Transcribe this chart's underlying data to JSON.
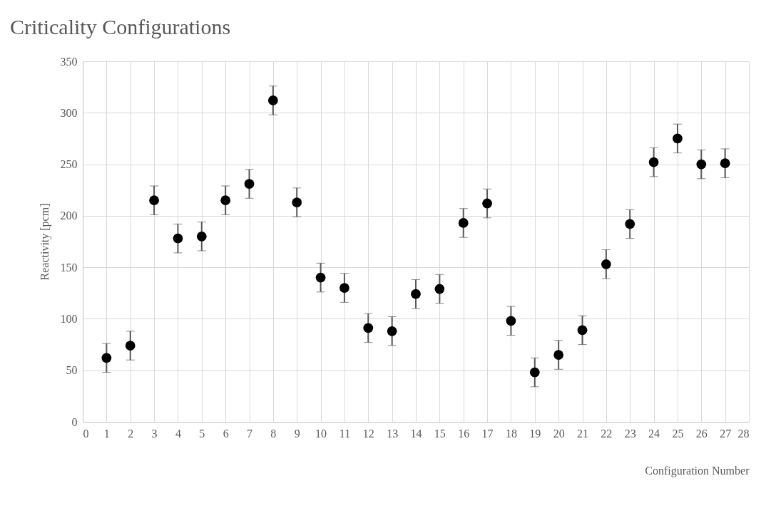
{
  "chart_data": {
    "type": "scatter",
    "title": "Criticality Configurations",
    "xlabel": "Configuration Number",
    "ylabel": "Reactivity [pcm]",
    "x": [
      1,
      2,
      3,
      4,
      5,
      6,
      7,
      8,
      9,
      10,
      11,
      12,
      13,
      14,
      15,
      16,
      17,
      18,
      19,
      20,
      21,
      22,
      23,
      24,
      25,
      26,
      27
    ],
    "series": [
      {
        "color": "#000000",
        "values": [
          62,
          74,
          215,
          178,
          180,
          215,
          231,
          312,
          213,
          140,
          130,
          91,
          88,
          124,
          129,
          193,
          212,
          98,
          48,
          65,
          89,
          153,
          192,
          252,
          275,
          250,
          251
        ],
        "errors": [
          14,
          14,
          14,
          14,
          14,
          14,
          14,
          14,
          14,
          14,
          14,
          14,
          14,
          14,
          14,
          14,
          14,
          14,
          14,
          14,
          14,
          14,
          14,
          14,
          14,
          14,
          14
        ]
      }
    ],
    "xlim": [
      0,
      28
    ],
    "xticks": [
      0,
      1,
      2,
      3,
      4,
      5,
      6,
      7,
      8,
      9,
      10,
      11,
      12,
      13,
      14,
      15,
      16,
      17,
      18,
      19,
      20,
      21,
      22,
      23,
      24,
      25,
      26,
      27,
      28
    ],
    "ylim": [
      0,
      350
    ],
    "yticks": [
      0,
      50,
      100,
      150,
      200,
      250,
      300,
      350
    ],
    "grid": true,
    "marker": "circle",
    "legend": false
  }
}
